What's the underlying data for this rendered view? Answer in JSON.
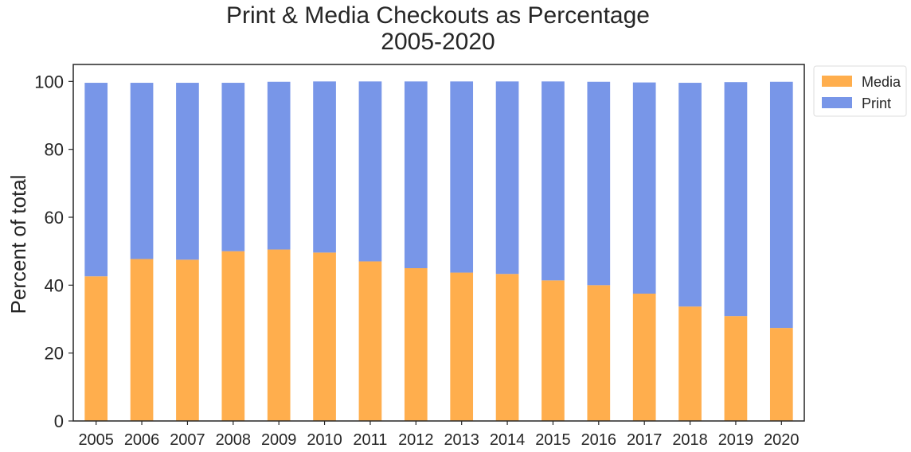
{
  "chart_data": {
    "type": "bar",
    "stacked": true,
    "title": "Print & Media Checkouts as Percentage",
    "subtitle": "2005-2020",
    "xlabel": "",
    "ylabel": "Percent of total",
    "ylim": [
      0,
      105
    ],
    "yticks": [
      0,
      20,
      40,
      60,
      80,
      100
    ],
    "grid": false,
    "legend_position": "outside top-right",
    "categories": [
      "2005",
      "2006",
      "2007",
      "2008",
      "2009",
      "2010",
      "2011",
      "2012",
      "2013",
      "2014",
      "2015",
      "2016",
      "2017",
      "2018",
      "2019",
      "2020"
    ],
    "series": [
      {
        "name": "Media",
        "color": "#ffae4d",
        "values": [
          42.6,
          47.7,
          47.5,
          50.0,
          50.5,
          49.6,
          47.0,
          45.0,
          43.7,
          43.3,
          41.4,
          40.0,
          37.5,
          33.7,
          30.9,
          27.4
        ]
      },
      {
        "name": "Print",
        "color": "#7896e8",
        "values": [
          57.0,
          51.9,
          52.1,
          49.6,
          49.4,
          50.4,
          53.0,
          55.0,
          56.3,
          56.7,
          58.6,
          59.9,
          62.2,
          65.9,
          68.9,
          72.5
        ]
      }
    ]
  }
}
